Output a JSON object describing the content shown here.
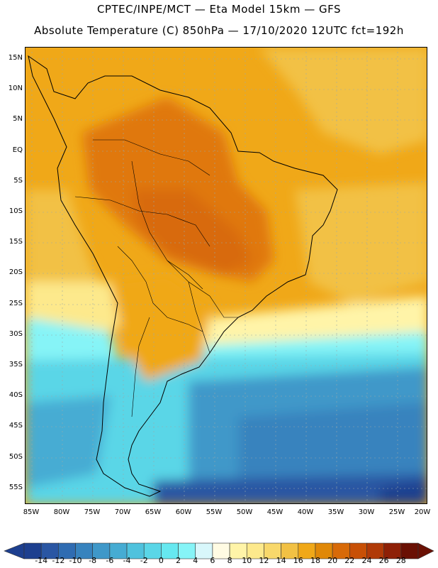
{
  "title_line1": "CPTEC/INPE/MCT —  Eta Model 15km — GFS",
  "title_line2": "Absolute Temperature (C) 850hPa — 17/10/2020 12UTC fct=192h",
  "lat_labels": [
    "15N",
    "10N",
    "5N",
    "EQ",
    "5S",
    "10S",
    "15S",
    "20S",
    "25S",
    "30S",
    "35S",
    "40S",
    "45S",
    "50S",
    "55S"
  ],
  "lon_labels": [
    "85W",
    "80W",
    "75W",
    "70W",
    "65W",
    "60W",
    "55W",
    "50W",
    "45W",
    "40W",
    "35W",
    "30W",
    "25W",
    "20W"
  ],
  "colorbar": {
    "labels": [
      "-14",
      "-12",
      "-10",
      "-8",
      "-6",
      "-4",
      "-2",
      "0",
      "2",
      "4",
      "6",
      "8",
      "10",
      "12",
      "14",
      "16",
      "18",
      "20",
      "22",
      "24",
      "26",
      "28"
    ],
    "colors": [
      "#1d3f8f",
      "#2a56a3",
      "#2f6cb2",
      "#3783be",
      "#3f98c9",
      "#46acd3",
      "#4fc2dd",
      "#5ad6e7",
      "#66e8f0",
      "#86f4f7",
      "#d8f7fb",
      "#fffbe3",
      "#fff4a8",
      "#fde98c",
      "#f8d86b",
      "#f2c144",
      "#f0a818",
      "#e08808",
      "#d86a08",
      "#c85006",
      "#b03a08",
      "#8e2006",
      "#6a1004"
    ]
  },
  "colors": {
    "hot": "#e07810",
    "warm": "#f0a818",
    "mild": "#f8d86b",
    "cool": "#66e8f0",
    "cold": "#3f98c9",
    "coldest": "#1d3f8f"
  }
}
